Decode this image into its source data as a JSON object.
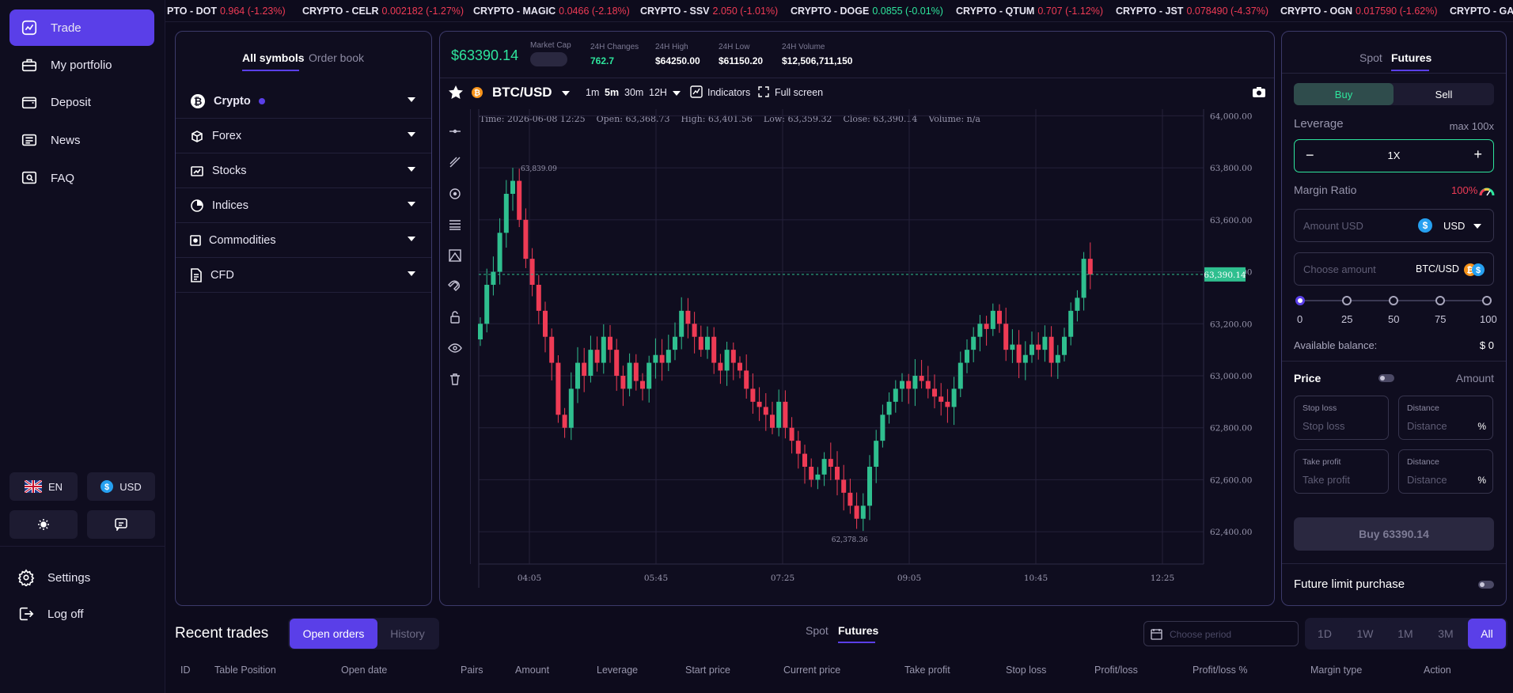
{
  "nav": {
    "items": [
      {
        "label": "Trade",
        "icon": "chart-icon"
      },
      {
        "label": "My portfolio",
        "icon": "briefcase-icon"
      },
      {
        "label": "Deposit",
        "icon": "wallet-icon"
      },
      {
        "label": "News",
        "icon": "news-icon"
      },
      {
        "label": "FAQ",
        "icon": "help-icon"
      }
    ],
    "language": "EN",
    "currency": "USD",
    "settings": "Settings",
    "logoff": "Log off"
  },
  "ticker": [
    {
      "label": "PTO - DOT",
      "value": "0.964 (-1.23%)"
    },
    {
      "label": "CRYPTO - CELR",
      "value": "0.002182 (-1.27%)"
    },
    {
      "label": "CRYPTO - MAGIC",
      "value": "0.0466 (-2.18%)"
    },
    {
      "label": "CRYPTO - SSV",
      "value": "2.050 (-1.01%)"
    },
    {
      "label": "CRYPTO - DOGE",
      "value": "0.0855 (-0.01%)"
    },
    {
      "label": "CRYPTO - QTUM",
      "value": "0.707 (-1.12%)"
    },
    {
      "label": "CRYPTO - JST",
      "value": "0.078490 (-4.37%)"
    },
    {
      "label": "CRYPTO - OGN",
      "value": "0.017590 (-1.62%)"
    },
    {
      "label": "CRYPTO - GALA",
      "value": ""
    }
  ],
  "symbols": {
    "tab_all": "All symbols",
    "tab_orderbook": "Order book",
    "categories": [
      "Crypto",
      "Forex",
      "Stocks",
      "Indices",
      "Commodities",
      "CFD"
    ]
  },
  "chart_header": {
    "price": "$63390.14",
    "market_cap_label": "Market Cap",
    "changes_label": "24H Changes",
    "changes_value": "762.7",
    "high_label": "24H High",
    "high_value": "$64250.00",
    "low_label": "24H Low",
    "low_value": "$61150.20",
    "volume_label": "24H Volume",
    "volume_value": "$12,506,711,150"
  },
  "toolbar": {
    "pair": "BTC/USD",
    "intervals": [
      "1m",
      "5m",
      "30m",
      "12H"
    ],
    "indicators": "Indicators",
    "fullscreen": "Full screen"
  },
  "ohlc": {
    "time": "Time: 2026-06-08 12:25",
    "open": "Open: 63,368.73",
    "high": "High: 63,401.56",
    "low": "Low: 63,359.32",
    "close": "Close: 63,390.14",
    "volume": "Volume: n/a"
  },
  "chart_data": {
    "type": "candlestick",
    "title": "BTC/USD",
    "x_ticks": [
      "04:05",
      "05:45",
      "07:25",
      "09:05",
      "10:45",
      "12:25"
    ],
    "y_ticks": [
      64000,
      63800,
      63600,
      63400,
      63200,
      63000,
      62800,
      62600,
      62400
    ],
    "ylim": [
      62300,
      64050
    ],
    "current_price": "63,390.14",
    "max_label": "63,839.09",
    "min_label": "62,378.36",
    "close_series": [
      63200,
      63350,
      63400,
      63550,
      63700,
      63750,
      63600,
      63450,
      63350,
      63250,
      63150,
      63050,
      62850,
      62800,
      62950,
      63050,
      63000,
      63100,
      63050,
      63150,
      63100,
      63000,
      62950,
      63050,
      62980,
      62950,
      63050,
      63080,
      63050,
      63100,
      63150,
      63250,
      63200,
      63150,
      63100,
      63150,
      63050,
      63020,
      63100,
      63050,
      63020,
      62950,
      62900,
      62880,
      62850,
      62800,
      62900,
      62800,
      62750,
      62700,
      62650,
      62600,
      62620,
      62680,
      62650,
      62600,
      62550,
      62500,
      62450,
      62500,
      62650,
      62750,
      62850,
      62900,
      62950,
      62980,
      62950,
      63000,
      62980,
      62950,
      62920,
      62900,
      62880,
      62950,
      63050,
      63100,
      63150,
      63200,
      63180,
      63250,
      63200,
      63100,
      63120,
      63050,
      63080,
      63120,
      63100,
      63150,
      63050,
      63080,
      63150,
      63250,
      63300,
      63450,
      63390
    ]
  },
  "order": {
    "tab_spot": "Spot",
    "tab_futures": "Futures",
    "buy": "Buy",
    "sell": "Sell",
    "leverage_label": "Leverage",
    "leverage_max": "max 100x",
    "leverage_value": "1X",
    "margin_label": "Margin Ratio",
    "margin_value": "100%",
    "amount_placeholder": "Amount USD",
    "amount_currency": "USD",
    "choose_placeholder": "Choose amount",
    "choose_pair": "BTC/USD",
    "slider_marks": [
      "0",
      "25",
      "50",
      "75",
      "100"
    ],
    "slider_value": 0,
    "balance_label": "Available balance:",
    "balance_value": "$ 0",
    "price_label": "Price",
    "amount_label": "Amount",
    "stoploss_label": "Stop loss",
    "stoploss_placeholder": "Stop loss",
    "distance_label": "Distance",
    "distance_placeholder": "Distance",
    "percent": "%",
    "takeprofit_label": "Take profit",
    "takeprofit_placeholder": "Take profit",
    "buy_button": "Buy 63390.14",
    "future_limit": "Future limit purchase"
  },
  "bottom": {
    "title": "Recent trades",
    "open_orders": "Open orders",
    "history": "History",
    "spot": "Spot",
    "futures": "Futures",
    "period_placeholder": "Choose period",
    "periods": [
      "1D",
      "1W",
      "1M",
      "3M",
      "All"
    ],
    "columns": [
      "ID",
      "Table Position",
      "Open date",
      "Pairs",
      "Amount",
      "Leverage",
      "Start price",
      "Current price",
      "Take profit",
      "Stop loss",
      "Profit/loss",
      "Profit/loss %",
      "Margin type",
      "Action"
    ]
  },
  "colors": {
    "accent": "#5a3fe8",
    "up": "#2fbf8f",
    "down": "#ef3b55",
    "price_green": "#2ee59d"
  }
}
